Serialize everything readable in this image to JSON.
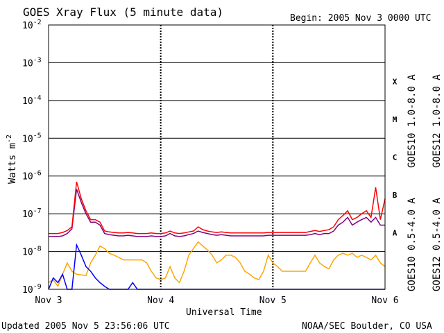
{
  "chart_data": {
    "type": "line",
    "title": "GOES Xray Flux (5 minute data)",
    "begin_label": "Begin:  2005 Nov 3 0000 UTC",
    "xlabel": "Universal Time",
    "ylabel_base": "Watts m",
    "ylabel_exp": "-2",
    "x_ticks": [
      "Nov 3",
      "Nov 4",
      "Nov 5",
      "Nov 6"
    ],
    "xlim": [
      0,
      72
    ],
    "x_unit": "hours since 2005 Nov 3 0000 UTC",
    "yscale": "log",
    "ylim": [
      1e-09,
      0.01
    ],
    "y_ticks": [
      {
        "base": "10",
        "exp": "-9",
        "value": 1e-09
      },
      {
        "base": "10",
        "exp": "-8",
        "value": 1e-08
      },
      {
        "base": "10",
        "exp": "-7",
        "value": 1e-07
      },
      {
        "base": "10",
        "exp": "-6",
        "value": 1e-06
      },
      {
        "base": "10",
        "exp": "-5",
        "value": 1e-05
      },
      {
        "base": "10",
        "exp": "-4",
        "value": 0.0001
      },
      {
        "base": "10",
        "exp": "-3",
        "value": 0.001
      },
      {
        "base": "10",
        "exp": "-2",
        "value": 0.01
      }
    ],
    "flare_classes": [
      {
        "label": "X",
        "value": 0.000316
      },
      {
        "label": "M",
        "value": 3.16e-05
      },
      {
        "label": "C",
        "value": 3.16e-06
      },
      {
        "label": "B",
        "value": 3.16e-07
      },
      {
        "label": "A",
        "value": 3.16e-08
      }
    ],
    "series": [
      {
        "name": "GOES10 0.5-4.0 A",
        "color": "#ffa500",
        "points": [
          [
            0,
            1.5e-09
          ],
          [
            1,
            1.8e-09
          ],
          [
            2,
            1.2e-09
          ],
          [
            3,
            2.5e-09
          ],
          [
            4,
            5e-09
          ],
          [
            5,
            3e-09
          ],
          [
            6,
            2.5e-09
          ],
          [
            7,
            2.4e-09
          ],
          [
            8,
            2.3e-09
          ],
          [
            9,
            5e-09
          ],
          [
            10,
            8e-09
          ],
          [
            11,
            1.4e-08
          ],
          [
            12,
            1.2e-08
          ],
          [
            13,
            9e-09
          ],
          [
            14,
            8e-09
          ],
          [
            15,
            7e-09
          ],
          [
            16,
            6e-09
          ],
          [
            17,
            6e-09
          ],
          [
            18,
            6e-09
          ],
          [
            19,
            6e-09
          ],
          [
            20,
            6e-09
          ],
          [
            21,
            5e-09
          ],
          [
            22,
            3e-09
          ],
          [
            23,
            2e-09
          ],
          [
            24,
            1.8e-09
          ],
          [
            25,
            2e-09
          ],
          [
            26,
            4e-09
          ],
          [
            27,
            2e-09
          ],
          [
            28,
            1.5e-09
          ],
          [
            29,
            3e-09
          ],
          [
            30,
            8e-09
          ],
          [
            31,
            1.2e-08
          ],
          [
            32,
            1.8e-08
          ],
          [
            33,
            1.4e-08
          ],
          [
            34,
            1.1e-08
          ],
          [
            35,
            8e-09
          ],
          [
            36,
            5e-09
          ],
          [
            37,
            6e-09
          ],
          [
            38,
            8e-09
          ],
          [
            39,
            8e-09
          ],
          [
            40,
            7e-09
          ],
          [
            41,
            5e-09
          ],
          [
            42,
            3e-09
          ],
          [
            43,
            2.5e-09
          ],
          [
            44,
            2e-09
          ],
          [
            45,
            1.8e-09
          ],
          [
            46,
            3e-09
          ],
          [
            47,
            8e-09
          ],
          [
            48,
            5e-09
          ],
          [
            49,
            4e-09
          ],
          [
            50,
            3e-09
          ],
          [
            51,
            3e-09
          ],
          [
            52,
            3e-09
          ],
          [
            53,
            3e-09
          ],
          [
            54,
            3e-09
          ],
          [
            55,
            3e-09
          ],
          [
            56,
            5e-09
          ],
          [
            57,
            8e-09
          ],
          [
            58,
            5e-09
          ],
          [
            59,
            4e-09
          ],
          [
            60,
            3.5e-09
          ],
          [
            61,
            6e-09
          ],
          [
            62,
            8e-09
          ],
          [
            63,
            9e-09
          ],
          [
            64,
            8e-09
          ],
          [
            65,
            9e-09
          ],
          [
            66,
            7e-09
          ],
          [
            67,
            8e-09
          ],
          [
            68,
            7e-09
          ],
          [
            69,
            6e-09
          ],
          [
            70,
            8e-09
          ],
          [
            71,
            5e-09
          ],
          [
            72,
            4e-09
          ]
        ]
      },
      {
        "name": "GOES12 0.5-4.0 A",
        "color": "#0000ff",
        "points": [
          [
            0,
            1e-09
          ],
          [
            1,
            2e-09
          ],
          [
            2,
            1.5e-09
          ],
          [
            3,
            2.5e-09
          ],
          [
            4,
            1e-09
          ],
          [
            5,
            1e-09
          ],
          [
            6,
            1.5e-08
          ],
          [
            7,
            8e-09
          ],
          [
            8,
            4e-09
          ],
          [
            9,
            3e-09
          ],
          [
            10,
            2e-09
          ],
          [
            11,
            1.5e-09
          ],
          [
            12,
            1.2e-09
          ],
          [
            13,
            1e-09
          ],
          [
            14,
            1e-09
          ],
          [
            15,
            1e-09
          ],
          [
            16,
            1e-09
          ],
          [
            17,
            1e-09
          ],
          [
            18,
            1.5e-09
          ],
          [
            19,
            1e-09
          ],
          [
            20,
            1e-09
          ],
          [
            21,
            1e-09
          ],
          [
            22,
            1e-09
          ],
          [
            23,
            1e-09
          ],
          [
            24,
            1e-09
          ],
          [
            25,
            1e-09
          ],
          [
            26,
            1e-09
          ],
          [
            27,
            1e-09
          ],
          [
            28,
            1e-09
          ],
          [
            29,
            1e-09
          ],
          [
            30,
            1e-09
          ],
          [
            31,
            1e-09
          ],
          [
            32,
            1e-09
          ],
          [
            33,
            1e-09
          ],
          [
            34,
            1e-09
          ],
          [
            35,
            1e-09
          ],
          [
            36,
            1e-09
          ],
          [
            37,
            1e-09
          ],
          [
            38,
            1e-09
          ],
          [
            39,
            1e-09
          ],
          [
            40,
            1e-09
          ],
          [
            41,
            1e-09
          ],
          [
            42,
            1e-09
          ],
          [
            43,
            1e-09
          ],
          [
            44,
            1e-09
          ],
          [
            45,
            1e-09
          ],
          [
            46,
            1e-09
          ],
          [
            47,
            1e-09
          ],
          [
            48,
            1e-09
          ],
          [
            49,
            1e-09
          ],
          [
            50,
            1e-09
          ],
          [
            51,
            1e-09
          ],
          [
            52,
            1e-09
          ],
          [
            53,
            1e-09
          ],
          [
            54,
            1e-09
          ],
          [
            55,
            1e-09
          ],
          [
            56,
            1e-09
          ],
          [
            57,
            1e-09
          ],
          [
            58,
            1e-09
          ],
          [
            59,
            1e-09
          ],
          [
            60,
            1e-09
          ],
          [
            61,
            1e-09
          ],
          [
            62,
            1e-09
          ],
          [
            63,
            1e-09
          ],
          [
            64,
            1e-09
          ],
          [
            65,
            1e-09
          ],
          [
            66,
            1e-09
          ],
          [
            67,
            1e-09
          ],
          [
            68,
            1e-09
          ],
          [
            69,
            1e-09
          ],
          [
            70,
            1e-09
          ],
          [
            71,
            1e-09
          ],
          [
            72,
            1e-09
          ]
        ]
      },
      {
        "name": "GOES10 1.0-8.0 A",
        "color": "#800080",
        "points": [
          [
            0,
            2.5e-08
          ],
          [
            1,
            2.5e-08
          ],
          [
            2,
            2.5e-08
          ],
          [
            3,
            2.6e-08
          ],
          [
            4,
            3e-08
          ],
          [
            5,
            4e-08
          ],
          [
            6,
            4.5e-07
          ],
          [
            7,
            2e-07
          ],
          [
            8,
            1e-07
          ],
          [
            9,
            6e-08
          ],
          [
            10,
            6e-08
          ],
          [
            11,
            5e-08
          ],
          [
            12,
            3e-08
          ],
          [
            13,
            2.8e-08
          ],
          [
            14,
            2.7e-08
          ],
          [
            15,
            2.6e-08
          ],
          [
            16,
            2.6e-08
          ],
          [
            17,
            2.7e-08
          ],
          [
            18,
            2.6e-08
          ],
          [
            19,
            2.5e-08
          ],
          [
            20,
            2.5e-08
          ],
          [
            21,
            2.5e-08
          ],
          [
            22,
            2.6e-08
          ],
          [
            23,
            2.5e-08
          ],
          [
            24,
            2.5e-08
          ],
          [
            25,
            2.6e-08
          ],
          [
            26,
            3e-08
          ],
          [
            27,
            2.6e-08
          ],
          [
            28,
            2.5e-08
          ],
          [
            29,
            2.6e-08
          ],
          [
            30,
            2.8e-08
          ],
          [
            31,
            3e-08
          ],
          [
            32,
            3.5e-08
          ],
          [
            33,
            3.2e-08
          ],
          [
            34,
            3e-08
          ],
          [
            35,
            2.8e-08
          ],
          [
            36,
            2.7e-08
          ],
          [
            37,
            2.8e-08
          ],
          [
            38,
            2.7e-08
          ],
          [
            39,
            2.6e-08
          ],
          [
            40,
            2.6e-08
          ],
          [
            41,
            2.6e-08
          ],
          [
            42,
            2.6e-08
          ],
          [
            43,
            2.6e-08
          ],
          [
            44,
            2.6e-08
          ],
          [
            45,
            2.6e-08
          ],
          [
            46,
            2.6e-08
          ],
          [
            47,
            2.7e-08
          ],
          [
            48,
            2.7e-08
          ],
          [
            49,
            2.7e-08
          ],
          [
            50,
            2.7e-08
          ],
          [
            51,
            2.7e-08
          ],
          [
            52,
            2.7e-08
          ],
          [
            53,
            2.7e-08
          ],
          [
            54,
            2.7e-08
          ],
          [
            55,
            2.7e-08
          ],
          [
            56,
            2.8e-08
          ],
          [
            57,
            3e-08
          ],
          [
            58,
            2.8e-08
          ],
          [
            59,
            3e-08
          ],
          [
            60,
            3e-08
          ],
          [
            61,
            3.5e-08
          ],
          [
            62,
            5e-08
          ],
          [
            63,
            6e-08
          ],
          [
            64,
            8e-08
          ],
          [
            65,
            5e-08
          ],
          [
            66,
            6e-08
          ],
          [
            67,
            7e-08
          ],
          [
            68,
            8e-08
          ],
          [
            69,
            6e-08
          ],
          [
            70,
            8e-08
          ],
          [
            71,
            5e-08
          ],
          [
            72,
            5e-08
          ]
        ]
      },
      {
        "name": "GOES12 1.0-8.0 A",
        "color": "#ff0000",
        "points": [
          [
            0,
            3e-08
          ],
          [
            1,
            3e-08
          ],
          [
            2,
            3e-08
          ],
          [
            3,
            3.2e-08
          ],
          [
            4,
            3.6e-08
          ],
          [
            5,
            4.5e-08
          ],
          [
            6,
            7e-07
          ],
          [
            7,
            2.5e-07
          ],
          [
            8,
            1.2e-07
          ],
          [
            9,
            7e-08
          ],
          [
            10,
            7e-08
          ],
          [
            11,
            6e-08
          ],
          [
            12,
            3.5e-08
          ],
          [
            13,
            3.3e-08
          ],
          [
            14,
            3.2e-08
          ],
          [
            15,
            3.1e-08
          ],
          [
            16,
            3.1e-08
          ],
          [
            17,
            3.2e-08
          ],
          [
            18,
            3.1e-08
          ],
          [
            19,
            3e-08
          ],
          [
            20,
            3e-08
          ],
          [
            21,
            3e-08
          ],
          [
            22,
            3.1e-08
          ],
          [
            23,
            3e-08
          ],
          [
            24,
            3e-08
          ],
          [
            25,
            3.1e-08
          ],
          [
            26,
            3.5e-08
          ],
          [
            27,
            3.1e-08
          ],
          [
            28,
            3e-08
          ],
          [
            29,
            3.1e-08
          ],
          [
            30,
            3.3e-08
          ],
          [
            31,
            3.5e-08
          ],
          [
            32,
            4.5e-08
          ],
          [
            33,
            3.8e-08
          ],
          [
            34,
            3.5e-08
          ],
          [
            35,
            3.3e-08
          ],
          [
            36,
            3.2e-08
          ],
          [
            37,
            3.3e-08
          ],
          [
            38,
            3.2e-08
          ],
          [
            39,
            3.1e-08
          ],
          [
            40,
            3.1e-08
          ],
          [
            41,
            3.1e-08
          ],
          [
            42,
            3.1e-08
          ],
          [
            43,
            3.1e-08
          ],
          [
            44,
            3.1e-08
          ],
          [
            45,
            3.1e-08
          ],
          [
            46,
            3.1e-08
          ],
          [
            47,
            3.2e-08
          ],
          [
            48,
            3.2e-08
          ],
          [
            49,
            3.2e-08
          ],
          [
            50,
            3.2e-08
          ],
          [
            51,
            3.2e-08
          ],
          [
            52,
            3.2e-08
          ],
          [
            53,
            3.2e-08
          ],
          [
            54,
            3.2e-08
          ],
          [
            55,
            3.2e-08
          ],
          [
            56,
            3.4e-08
          ],
          [
            57,
            3.6e-08
          ],
          [
            58,
            3.4e-08
          ],
          [
            59,
            3.6e-08
          ],
          [
            60,
            3.8e-08
          ],
          [
            61,
            4.5e-08
          ],
          [
            62,
            7e-08
          ],
          [
            63,
            9e-08
          ],
          [
            64,
            1.2e-07
          ],
          [
            65,
            7e-08
          ],
          [
            66,
            8e-08
          ],
          [
            67,
            1e-07
          ],
          [
            68,
            1.2e-07
          ],
          [
            69,
            8e-08
          ],
          [
            70,
            5e-07
          ],
          [
            71,
            7e-08
          ],
          [
            72,
            2.5e-07
          ]
        ]
      }
    ]
  },
  "footer": {
    "updated": "Updated 2005 Nov  5 23:56:06 UTC",
    "credit": "NOAA/SEC Boulder, CO USA"
  }
}
